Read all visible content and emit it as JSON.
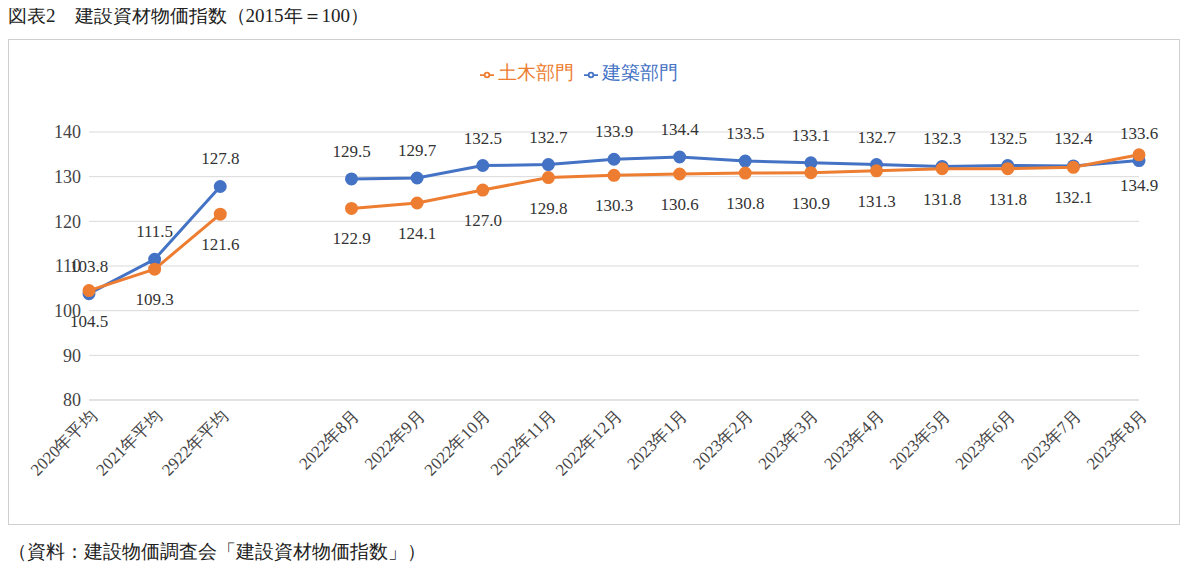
{
  "chart_data": {
    "type": "line",
    "title": "図表2　建設資材物価指数（2015年＝100）",
    "source": "（資料：建設物価調査会「建設資材物価指数」）",
    "categories": [
      "2020年平均",
      "2021年平均",
      "2922年平均",
      null,
      "2022年8月",
      "2022年9月",
      "2022年10月",
      "2022年11月",
      "2022年12月",
      "2023年1月",
      "2023年2月",
      "2023年3月",
      "2023年4月",
      "2023年5月",
      "2023年6月",
      "2023年7月",
      "2023年8月"
    ],
    "series": [
      {
        "name": "建築部門",
        "color": "#4472c4",
        "marker": "circle",
        "values": [
          103.8,
          111.5,
          127.8,
          null,
          129.5,
          129.7,
          132.5,
          132.7,
          133.9,
          134.4,
          133.5,
          133.1,
          132.7,
          132.3,
          132.5,
          132.4,
          133.6
        ],
        "value_labels": [
          "103.8",
          "111.5",
          "127.8",
          null,
          "129.5",
          "129.7",
          "132.5",
          "132.7",
          "133.9",
          "134.4",
          "133.5",
          "133.1",
          "132.7",
          "132.3",
          "132.5",
          "132.4",
          "133.6"
        ]
      },
      {
        "name": "土木部門",
        "color": "#ed7d31",
        "marker": "circle",
        "values": [
          104.5,
          109.3,
          121.6,
          null,
          122.9,
          124.1,
          127.0,
          129.8,
          130.3,
          130.6,
          130.8,
          130.9,
          131.3,
          131.8,
          131.8,
          132.1,
          134.9
        ],
        "value_labels": [
          "104.5",
          "109.3",
          "121.6",
          null,
          "122.9",
          "124.1",
          "127.0",
          "129.8",
          "130.3",
          "130.6",
          "130.8",
          "130.9",
          "131.3",
          "131.8",
          "131.8",
          "132.1",
          "134.9"
        ]
      }
    ],
    "ylim": [
      80,
      140
    ],
    "yticks": [
      80,
      90,
      100,
      110,
      120,
      130,
      140
    ],
    "grid": true,
    "legend": "top",
    "data_labels": true
  }
}
